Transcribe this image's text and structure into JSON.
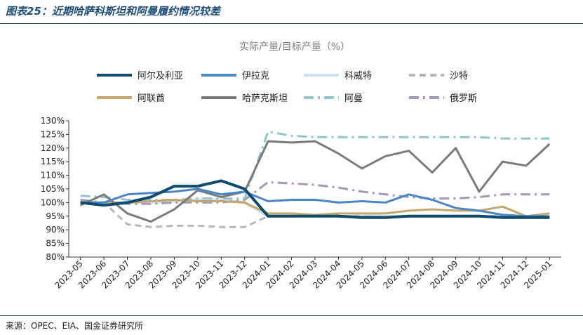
{
  "figure": {
    "title": "图表25：近期哈萨科斯坦和阿曼履约情况较差",
    "source": "来源：OPEC、EIA、国金证券研究所"
  },
  "chart_data": {
    "type": "line",
    "title": "实际产量/目标产量（%）",
    "x": [
      "2023-05",
      "2023-06",
      "2023-07",
      "2023-08",
      "2023-09",
      "2023-10",
      "2023-11",
      "2023-12",
      "2024-01",
      "2024-02",
      "2024-03",
      "2024-04",
      "2024-05",
      "2024-06",
      "2024-07",
      "2024-08",
      "2024-09",
      "2024-10",
      "2024-11",
      "2024-12",
      "2025-01"
    ],
    "ylim": [
      80,
      130
    ],
    "yticks": [
      80,
      85,
      90,
      95,
      100,
      105,
      110,
      115,
      120,
      125,
      130
    ],
    "ytick_labels": [
      "80%",
      "85%",
      "90%",
      "95%",
      "100%",
      "105%",
      "110%",
      "115%",
      "120%",
      "125%",
      "130%"
    ],
    "grid": false,
    "legend_position": "top",
    "series": [
      {
        "name": "阿尔及利亚",
        "color": "#0e4a6e",
        "style": "solid",
        "width": 4,
        "values": [
          100,
          99,
          100,
          102,
          106,
          106,
          108,
          105,
          95,
          95,
          95,
          95,
          94.5,
          94.5,
          95,
          95,
          95,
          95,
          94.5,
          94.5,
          94.5
        ]
      },
      {
        "name": "伊拉克",
        "color": "#4a86c8",
        "style": "solid",
        "width": 3,
        "values": [
          100,
          100,
          103,
          103.5,
          104,
          105,
          103,
          104,
          100.5,
          101,
          101,
          100,
          100.5,
          100,
          103,
          101,
          98,
          97,
          95.5,
          95,
          95
        ]
      },
      {
        "name": "科威特",
        "color": "#cfe3ee",
        "style": "solid",
        "width": 4,
        "values": [
          100,
          99.5,
          100,
          100,
          100.5,
          101,
          101,
          100,
          95,
          95,
          95,
          95,
          95,
          95,
          95,
          95,
          95,
          95,
          95,
          94.5,
          94.5
        ]
      },
      {
        "name": "沙特",
        "color": "#b8b8b8",
        "style": "dash",
        "width": 3,
        "values": [
          100,
          100,
          92,
          91,
          91.5,
          91.5,
          91,
          91,
          95,
          95,
          95,
          95,
          95,
          94.5,
          95,
          95,
          95,
          95,
          95,
          94.5,
          94.5
        ]
      },
      {
        "name": "阿联酋",
        "color": "#c4a86a",
        "style": "solid",
        "width": 3,
        "values": [
          100,
          100,
          100,
          100.5,
          101,
          100.5,
          100.5,
          100,
          96,
          96,
          95.5,
          96,
          96,
          96,
          97,
          97.5,
          97,
          97,
          98.5,
          95,
          96
        ]
      },
      {
        "name": "哈萨克斯坦",
        "color": "#7a7a7a",
        "style": "solid",
        "width": 3,
        "values": [
          99,
          103,
          96,
          93,
          97.5,
          104.5,
          102,
          104,
          122.5,
          122,
          122.5,
          118,
          112.5,
          117,
          119,
          111,
          120,
          104,
          115,
          113.5,
          121.5
        ]
      },
      {
        "name": "阿曼",
        "color": "#92c4cc",
        "style": "dashdot",
        "width": 3,
        "values": [
          102.5,
          102,
          101,
          101,
          101,
          101.5,
          101.5,
          101.5,
          126,
          124.5,
          124,
          124,
          124,
          124,
          124,
          124,
          124,
          124,
          123.5,
          123.5,
          123.5
        ]
      },
      {
        "name": "俄罗斯",
        "color": "#a896b8",
        "style": "dashdot",
        "width": 3,
        "values": [
          101,
          100,
          99.5,
          99.5,
          100,
          100,
          100,
          101,
          107.5,
          107,
          106.5,
          105.5,
          104,
          103,
          102,
          101.5,
          101.5,
          102,
          103,
          103,
          103
        ]
      }
    ]
  }
}
